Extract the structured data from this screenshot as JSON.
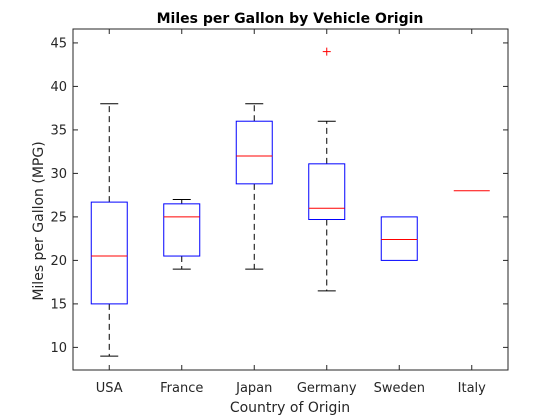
{
  "chart_data": {
    "type": "box",
    "title": "Miles per Gallon by Vehicle Origin",
    "xlabel": "Country of Origin",
    "ylabel": "Miles per Gallon (MPG)",
    "ylim": [
      7.4,
      46.6
    ],
    "yticks": [
      10,
      15,
      20,
      25,
      30,
      35,
      40,
      45
    ],
    "grid": false,
    "categories": [
      "USA",
      "France",
      "Japan",
      "Germany",
      "Sweden",
      "Italy"
    ],
    "boxes": [
      {
        "category": "USA",
        "whisker_low": 9,
        "q1": 15,
        "median": 20.5,
        "q3": 26.7,
        "whisker_high": 38,
        "outliers": []
      },
      {
        "category": "France",
        "whisker_low": 19,
        "q1": 20.5,
        "median": 25,
        "q3": 26.5,
        "whisker_high": 27,
        "outliers": []
      },
      {
        "category": "Japan",
        "whisker_low": 19,
        "q1": 28.8,
        "median": 32,
        "q3": 36,
        "whisker_high": 38,
        "outliers": []
      },
      {
        "category": "Germany",
        "whisker_low": 16.5,
        "q1": 24.7,
        "median": 26,
        "q3": 31.1,
        "whisker_high": 36,
        "outliers": [
          44
        ]
      },
      {
        "category": "Sweden",
        "whisker_low": 20,
        "q1": 20,
        "median": 22.4,
        "q3": 25,
        "whisker_high": 25,
        "outliers": []
      },
      {
        "category": "Italy",
        "whisker_low": 28,
        "q1": 28,
        "median": 28,
        "q3": 28,
        "whisker_high": 28,
        "outliers": []
      }
    ],
    "colors": {
      "box": "#0000ff",
      "median": "#ff0000",
      "whisker": "#000000",
      "outlier": "#ff0000",
      "axis": "#262626"
    }
  }
}
